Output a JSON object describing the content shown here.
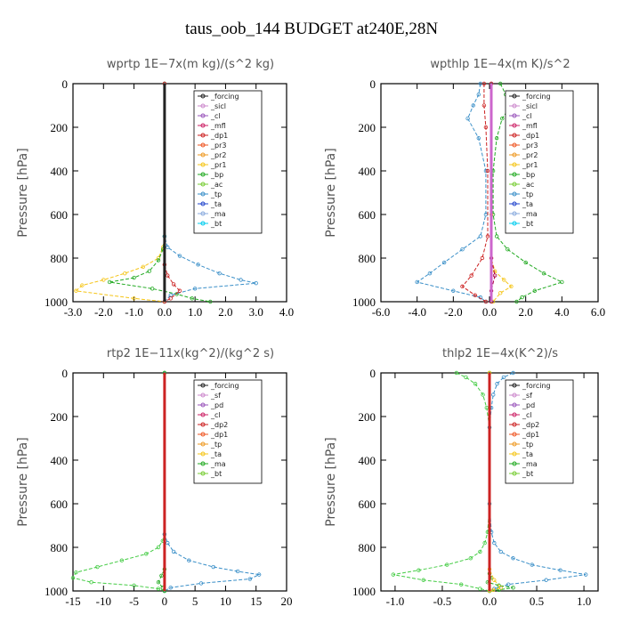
{
  "figure_title": "taus_oob_144  BUDGET at240E,28N",
  "chart_data": [
    {
      "type": "line",
      "title": "wprtp  1E−7x(m kg)/(s^2 kg)",
      "ylabel": "Pressure  [hPa]",
      "xlim": [
        -3.0,
        4.0
      ],
      "ylim": [
        1000,
        0
      ],
      "xticks": [
        "-3.0",
        "-2.0",
        "-1.0",
        "0.0",
        "1.0",
        "2.0",
        "3.0",
        "4.0"
      ],
      "yticks": [
        "0",
        "200",
        "400",
        "600",
        "800",
        "1000"
      ],
      "legend": [
        "_forcing",
        "_sicl",
        "_cl",
        "_mfl",
        "_dp1",
        "_pr3",
        "_pr2",
        "_pr1",
        "_bp",
        "_ac",
        "_tp",
        "_ta",
        "_ma",
        "_bt"
      ],
      "series": [
        {
          "name": "_pr1",
          "color": "#f5c518",
          "x": [
            0,
            0,
            -0.05,
            -0.2,
            -0.7,
            -1.3,
            -2.0,
            -2.7,
            -2.9,
            -1.0,
            0
          ],
          "y": [
            0,
            700,
            750,
            800,
            840,
            870,
            900,
            925,
            950,
            985,
            1000
          ]
        },
        {
          "name": "_bp",
          "color": "#22aa22",
          "x": [
            0,
            0,
            -0.05,
            -0.2,
            -0.5,
            -1.0,
            -1.8,
            -0.4,
            0.4,
            0.9,
            1.5
          ],
          "y": [
            0,
            700,
            760,
            810,
            860,
            890,
            910,
            940,
            965,
            985,
            1000
          ]
        },
        {
          "name": "_tp",
          "color": "#3a8fc8",
          "x": [
            0,
            0,
            0.1,
            0.5,
            1.1,
            1.8,
            2.5,
            3.0,
            1.0,
            0.2,
            0
          ],
          "y": [
            0,
            700,
            750,
            790,
            830,
            870,
            900,
            915,
            940,
            970,
            1000
          ]
        },
        {
          "name": "_pr3",
          "color": "#cc2222",
          "x": [
            0,
            0,
            0.1,
            0.3,
            0.5,
            0.2,
            0
          ],
          "y": [
            0,
            830,
            880,
            920,
            950,
            985,
            1000
          ]
        },
        {
          "name": "_forcing",
          "color": "#222222",
          "x": [
            0,
            0
          ],
          "y": [
            0,
            1000
          ]
        }
      ]
    },
    {
      "type": "line",
      "title": "wpthlp  1E−4x(m K)/s^2",
      "ylabel": "Pressure  [hPa]",
      "xlim": [
        -6.0,
        6.0
      ],
      "ylim": [
        1000,
        0
      ],
      "xticks": [
        "-6.0",
        "-4.0",
        "-2.0",
        "0.0",
        "2.0",
        "4.0",
        "6.0"
      ],
      "yticks": [
        "0",
        "200",
        "400",
        "600",
        "800",
        "1000"
      ],
      "legend": [
        "_forcing",
        "_sicl",
        "_cl",
        "_mfl",
        "_dp1",
        "_pr3",
        "_pr2",
        "_pr1",
        "_bp",
        "_ac",
        "_tp",
        "_ta",
        "_ma",
        "_bt"
      ],
      "series": [
        {
          "name": "_bp",
          "color": "#22aa22",
          "x": [
            0.6,
            0.9,
            1.2,
            0.7,
            0.4,
            0.2,
            0.2,
            0.4,
            1.0,
            2.0,
            3.0,
            4.0,
            2.5,
            1.8,
            1.5
          ],
          "y": [
            0,
            50,
            100,
            160,
            250,
            400,
            600,
            700,
            760,
            820,
            870,
            910,
            950,
            980,
            1000
          ]
        },
        {
          "name": "_tp",
          "color": "#3a8fc8",
          "x": [
            -0.5,
            -0.6,
            -0.9,
            -1.2,
            -0.6,
            -0.2,
            -0.2,
            -0.5,
            -1.5,
            -2.5,
            -3.3,
            -4.0,
            -2.0,
            -0.5,
            -0.2
          ],
          "y": [
            0,
            50,
            100,
            160,
            250,
            400,
            600,
            700,
            760,
            820,
            870,
            910,
            950,
            980,
            1000
          ]
        },
        {
          "name": "_pr1",
          "color": "#f5c518",
          "x": [
            0.1,
            0.1,
            0.1,
            0.3,
            0.8,
            1.2,
            0.6,
            0.2
          ],
          "y": [
            0,
            600,
            800,
            860,
            900,
            930,
            960,
            1000
          ]
        },
        {
          "name": "_dp1",
          "color": "#cc2222",
          "x": [
            -0.3,
            -0.3,
            -0.2,
            -0.1,
            -0.1,
            -0.4,
            -1.0,
            -1.5,
            -0.8,
            -0.2
          ],
          "y": [
            0,
            100,
            200,
            400,
            700,
            800,
            880,
            930,
            970,
            1000
          ]
        },
        {
          "name": "_pr3",
          "color": "#aa0044",
          "x": [
            0.1,
            0.1,
            0.3,
            0.1,
            0.1
          ],
          "y": [
            0,
            800,
            880,
            950,
            1000
          ]
        },
        {
          "name": "_forcing",
          "color": "#cc66cc",
          "x": [
            0.1,
            0.1
          ],
          "y": [
            0,
            1000
          ]
        }
      ]
    },
    {
      "type": "line",
      "title": "rtp2  1E−11x(kg^2)/(kg^2 s)",
      "ylabel": "Pressure  [hPa]",
      "xlim": [
        -15,
        20
      ],
      "ylim": [
        1000,
        0
      ],
      "xticks": [
        "-15",
        "-10",
        "-5",
        "0",
        "5",
        "10",
        "15",
        "20"
      ],
      "yticks": [
        "0",
        "200",
        "400",
        "600",
        "800",
        "1000"
      ],
      "legend": [
        "_forcing",
        "_sf",
        "_pd",
        "_cl",
        "_dp2",
        "_dp1",
        "_tp",
        "_ta",
        "_ma",
        "_bt"
      ],
      "series": [
        {
          "name": "_dp1",
          "color": "#44cc44",
          "x": [
            0,
            0,
            -0.3,
            -1.0,
            -3.0,
            -7.0,
            -11.0,
            -14.5,
            -15.0,
            -12.0,
            -5.0,
            -1.0,
            0
          ],
          "y": [
            0,
            740,
            770,
            800,
            830,
            860,
            890,
            915,
            940,
            960,
            975,
            990,
            1000
          ]
        },
        {
          "name": "_tp",
          "color": "#3a8fc8",
          "x": [
            0,
            0,
            0.5,
            1.5,
            4.0,
            8.0,
            12.0,
            15.5,
            14.0,
            6.0,
            1.0,
            0
          ],
          "y": [
            0,
            740,
            780,
            820,
            860,
            890,
            910,
            925,
            945,
            965,
            985,
            1000
          ]
        },
        {
          "name": "_dp2",
          "color": "#22aa22",
          "x": [
            0,
            0,
            -0.5,
            -1.0,
            -0.3,
            0
          ],
          "y": [
            0,
            900,
            930,
            960,
            985,
            1000
          ]
        },
        {
          "name": "_forcing",
          "color": "#cc2222",
          "x": [
            0,
            0
          ],
          "y": [
            0,
            1000
          ]
        }
      ]
    },
    {
      "type": "line",
      "title": "thlp2  1E−4x(K^2)/s",
      "ylabel": "Pressure  [hPa]",
      "xlim": [
        -1.15,
        1.15
      ],
      "ylim": [
        1000,
        0
      ],
      "xticks": [
        "-1.0",
        "-0.5",
        "0.0",
        "0.5",
        "1.0"
      ],
      "yticks": [
        "0",
        "200",
        "400",
        "600",
        "800",
        "1000"
      ],
      "legend": [
        "_forcing",
        "_sf",
        "_pd",
        "_cl",
        "_dp2",
        "_dp1",
        "_tp",
        "_ta",
        "_ma",
        "_bt"
      ],
      "series": [
        {
          "name": "_dp1",
          "color": "#44cc44",
          "x": [
            -0.35,
            -0.25,
            -0.15,
            -0.07,
            -0.03,
            0,
            0,
            -0.02,
            -0.05,
            -0.1,
            -0.2,
            -0.45,
            -0.75,
            -1.02,
            -0.7,
            -0.3,
            -0.1,
            0
          ],
          "y": [
            0,
            20,
            50,
            100,
            160,
            250,
            600,
            730,
            780,
            820,
            850,
            880,
            905,
            925,
            950,
            970,
            990,
            1000
          ]
        },
        {
          "name": "_tp",
          "color": "#3a8fc8",
          "x": [
            0.25,
            0.15,
            0.08,
            0.04,
            0.02,
            0,
            0,
            0.02,
            0.05,
            0.12,
            0.25,
            0.45,
            0.75,
            1.02,
            0.6,
            0.2,
            0.05,
            0
          ],
          "y": [
            0,
            20,
            50,
            100,
            160,
            250,
            600,
            730,
            780,
            820,
            850,
            880,
            905,
            925,
            950,
            970,
            990,
            1000
          ]
        },
        {
          "name": "_dp2",
          "color": "#22aa22",
          "x": [
            0,
            0,
            0.02,
            -0.02,
            0.1,
            0.25,
            0.1,
            0
          ],
          "y": [
            0,
            920,
            940,
            960,
            975,
            985,
            995,
            1000
          ]
        },
        {
          "name": "_pd",
          "color": "#f5c518",
          "x": [
            0,
            0,
            0.05,
            0.12,
            0.04,
            0
          ],
          "y": [
            0,
            900,
            950,
            985,
            995,
            1000
          ]
        },
        {
          "name": "_sf",
          "color": "#cc2222",
          "x": [
            0,
            0
          ],
          "y": [
            0,
            1000
          ]
        }
      ]
    }
  ]
}
